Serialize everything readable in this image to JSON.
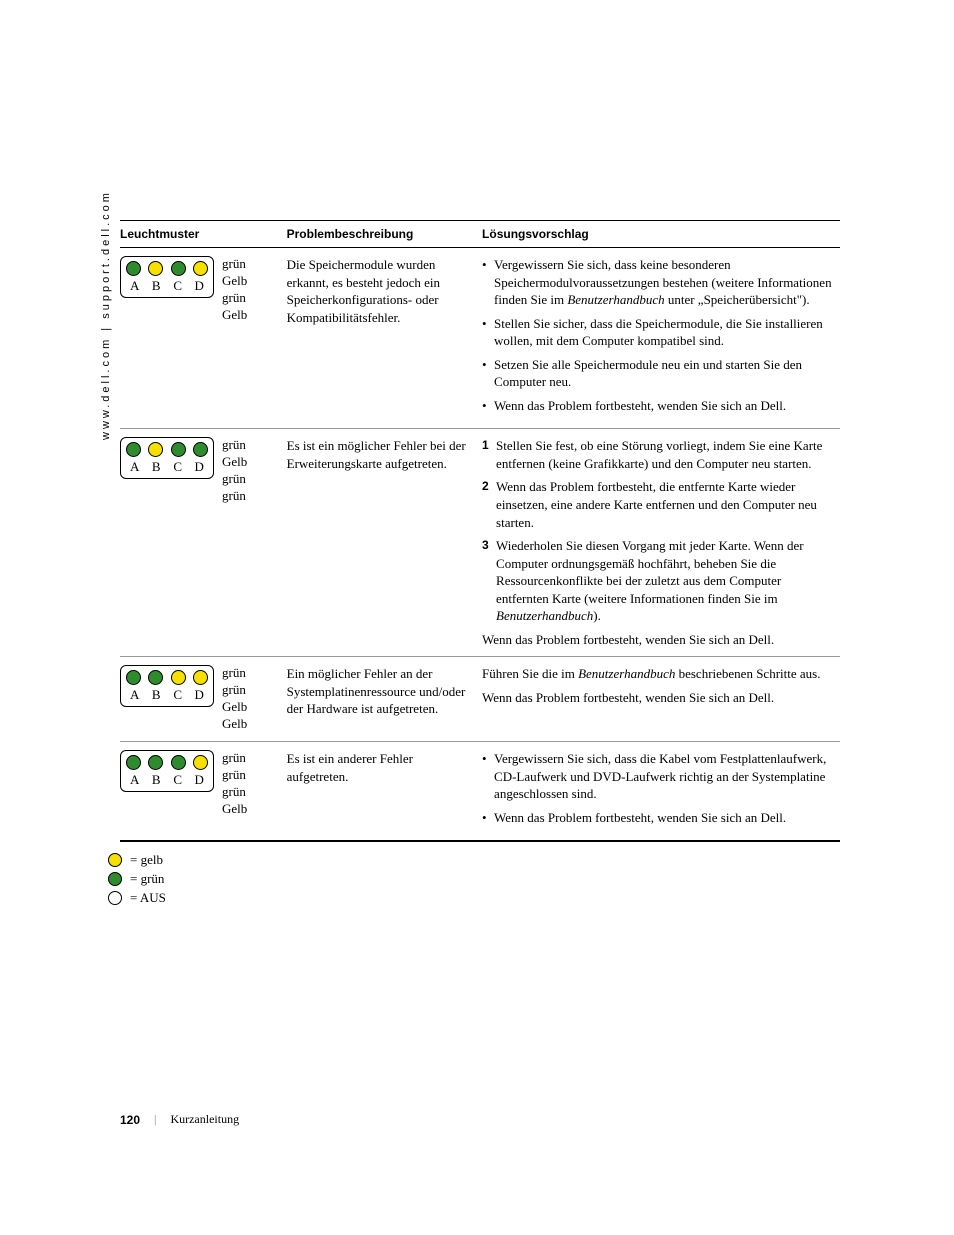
{
  "side_url": "www.dell.com | support.dell.com",
  "headers": {
    "leuchtmuster": "Leuchtmuster",
    "problem": "Problembeschreibung",
    "losung": "Lösungsvorschlag"
  },
  "led_labels": [
    "A",
    "B",
    "C",
    "D"
  ],
  "color_names": {
    "green": "grün",
    "yellow": "Gelb",
    "off": "AUS"
  },
  "rows": [
    {
      "leds": [
        "green",
        "yellow",
        "green",
        "yellow"
      ],
      "color_text": [
        "grün",
        "Gelb",
        "grün",
        "Gelb"
      ],
      "problem": "Die Speichermodule wurden erkannt, es besteht jedoch ein Speicherkonfigurations- oder Kompatibilitätsfehler.",
      "solution_type": "bullets",
      "items": [
        "Vergewissern Sie sich, dass keine besonderen Speichermodulvoraussetzungen bestehen (weitere Informationen finden Sie im <em class='ital'>Benutzerhandbuch</em> unter „Speicherübersicht\").",
        "Stellen Sie sicher, dass die Speichermodule, die Sie installieren wollen, mit dem Computer kompatibel sind.",
        "Setzen Sie alle Speichermodule neu ein und starten Sie den Computer neu.",
        "Wenn das Problem fortbesteht, wenden Sie sich an Dell."
      ]
    },
    {
      "leds": [
        "green",
        "yellow",
        "green",
        "green"
      ],
      "color_text": [
        "grün",
        "Gelb",
        "grün",
        "grün"
      ],
      "problem": "Es ist ein möglicher Fehler bei der Erweiterungskarte aufgetreten.",
      "solution_type": "numbered",
      "items": [
        "Stellen Sie fest, ob eine Störung vorliegt, indem Sie eine Karte entfernen (keine Grafikkarte) und den Computer neu starten.",
        "Wenn das Problem fortbesteht, die entfernte Karte wieder einsetzen, eine andere Karte entfernen und den Computer neu starten.",
        "Wiederholen Sie diesen Vorgang mit jeder Karte. Wenn der Computer ordnungsgemäß hochfährt, beheben Sie die Ressourcenkonflikte bei der zuletzt aus dem Computer entfernten Karte (weitere Informationen finden Sie im <em class='ital'>Benutzerhandbuch</em>)."
      ],
      "tail": "Wenn das Problem fortbesteht, wenden Sie sich an Dell."
    },
    {
      "leds": [
        "green",
        "green",
        "yellow",
        "yellow"
      ],
      "color_text": [
        "grün",
        "grün",
        "Gelb",
        "Gelb"
      ],
      "problem": "Ein möglicher Fehler an der Systemplatinenressource und/oder der Hardware ist aufgetreten.",
      "solution_type": "plain",
      "items": [
        "Führen Sie die im <em class='ital'>Benutzerhandbuch</em> beschriebenen Schritte aus.",
        "Wenn das Problem fortbesteht, wenden Sie sich an Dell."
      ]
    },
    {
      "leds": [
        "green",
        "green",
        "green",
        "yellow"
      ],
      "color_text": [
        "grün",
        "grün",
        "grün",
        "Gelb"
      ],
      "problem": "Es ist ein anderer Fehler aufgetreten.",
      "solution_type": "bullets",
      "items": [
        "Vergewissern Sie sich, dass die Kabel vom Festplattenlaufwerk, CD-Laufwerk und DVD-Laufwerk richtig an der Systemplatine angeschlossen sind.",
        "Wenn das Problem fortbesteht, wenden Sie sich an Dell."
      ]
    }
  ],
  "legend": [
    {
      "state": "yellow",
      "label": "= gelb"
    },
    {
      "state": "green",
      "label": "= grün"
    },
    {
      "state": "off",
      "label": "= AUS"
    }
  ],
  "footer": {
    "page": "120",
    "section": "Kurzanleitung"
  }
}
